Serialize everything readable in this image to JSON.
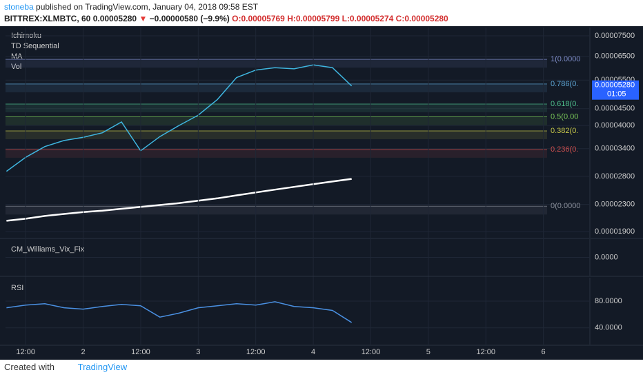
{
  "header": {
    "author": "stoneba",
    "published": "published on TradingView.com, January 04, 2018 09:58 EST",
    "symbol": "BITTREX:XLMBTC, 60",
    "last": "0.00005280",
    "arrow": "▼",
    "change": "−0.00000580 (−9.9%)",
    "open": "O:0.00005769",
    "high": "H:0.00005799",
    "low": "L:0.00005274",
    "close": "C:0.00005280"
  },
  "footer": {
    "created": "Created with",
    "brand": "TradingView"
  },
  "chart_data": [
    {
      "type": "line",
      "indicators": [
        "Ichimoku",
        "TD Sequential",
        "MA",
        "Vol"
      ],
      "log_scale": true,
      "x": [
        -4,
        0,
        4,
        8,
        12,
        16,
        20,
        24,
        28,
        32,
        36,
        40,
        44,
        48,
        52,
        56,
        60,
        64,
        68
      ],
      "series": [
        {
          "color": "#3fb6e0",
          "values": [
            2.9e-05,
            3.2e-05,
            3.45e-05,
            3.6e-05,
            3.68e-05,
            3.8e-05,
            4.1e-05,
            3.35e-05,
            3.7e-05,
            4e-05,
            4.3e-05,
            4.8e-05,
            5.6e-05,
            5.9e-05,
            6e-05,
            5.95e-05,
            6.12e-05,
            6e-05,
            5.28e-05
          ]
        },
        {
          "color": "#ffffff",
          "values": [
            2.05e-05,
            2.08e-05,
            2.12e-05,
            2.15e-05,
            2.18e-05,
            2.2e-05,
            2.23e-05,
            2.26e-05,
            2.29e-05,
            2.32e-05,
            2.36e-05,
            2.4e-05,
            2.45e-05,
            2.5e-05,
            2.55e-05,
            2.6e-05,
            2.65e-05,
            2.7e-05,
            2.75e-05
          ]
        }
      ],
      "xlim": [
        -4.2,
        117.7
      ],
      "xticks": [
        {
          "value": 0,
          "label": "12:00"
        },
        {
          "value": 12,
          "label": "2"
        },
        {
          "value": 24,
          "label": "12:00"
        },
        {
          "value": 36,
          "label": "3"
        },
        {
          "value": 48,
          "label": "12:00"
        },
        {
          "value": 60,
          "label": "4"
        },
        {
          "value": 72,
          "label": "12:00"
        },
        {
          "value": 84,
          "label": "5"
        },
        {
          "value": 96,
          "label": "12:00"
        },
        {
          "value": 108,
          "label": "6"
        }
      ],
      "ylim": [
        1.82e-05,
        7.95e-05
      ],
      "yticks": [
        {
          "value": 7.5e-05,
          "label": "0.00007500"
        },
        {
          "value": 6.5e-05,
          "label": "0.00006500"
        },
        {
          "value": 5.5e-05,
          "label": "0.00005500"
        },
        {
          "value": 4.5e-05,
          "label": "0.00004500"
        },
        {
          "value": 4e-05,
          "label": "0.00004000"
        },
        {
          "value": 3.4e-05,
          "label": "0.00003400"
        },
        {
          "value": 2.8e-05,
          "label": "0.00002800"
        },
        {
          "value": 2.3e-05,
          "label": "0.00002300"
        },
        {
          "value": 1.9e-05,
          "label": "0.00001900"
        }
      ],
      "annotations": [
        {
          "text": "1(0.0000",
          "value": 6.36e-05,
          "color": "#7e8cc8"
        },
        {
          "text": "0.786(0.",
          "value": 5.35e-05,
          "color": "#5fa8d8"
        },
        {
          "text": "0.618(0.",
          "value": 4.65e-05,
          "color": "#4fc08d"
        },
        {
          "text": "0.5(0.00",
          "value": 4.25e-05,
          "color": "#7ccc5a"
        },
        {
          "text": "0.382(0.",
          "value": 3.85e-05,
          "color": "#c8c84a"
        },
        {
          "text": "0.236(0.",
          "value": 3.38e-05,
          "color": "#d05050"
        },
        {
          "text": "0(0.0000",
          "value": 2.27e-05,
          "color": "#8a8f9a"
        }
      ],
      "last_price": {
        "value": 5.28e-05,
        "label": "0.00005280",
        "countdown": "01:05"
      }
    },
    {
      "type": "bar",
      "title": "CM_Williams_Vix_Fix",
      "ylim": [
        -1,
        1
      ],
      "yticks": [
        {
          "value": 0,
          "label": "0.0000"
        }
      ]
    },
    {
      "type": "line",
      "title": "RSI",
      "x": [
        -4,
        0,
        4,
        8,
        12,
        16,
        20,
        24,
        28,
        32,
        36,
        40,
        44,
        48,
        52,
        56,
        60,
        64,
        68
      ],
      "series": [
        {
          "color": "#4a90e2",
          "values": [
            70,
            74,
            76,
            70,
            68,
            72,
            75,
            73,
            56,
            62,
            70,
            73,
            76,
            74,
            79,
            72,
            70,
            66,
            48
          ]
        }
      ],
      "xlim": [
        -4.2,
        117.7
      ],
      "ylim": [
        15,
        115
      ],
      "yticks": [
        {
          "value": 80,
          "label": "80.0000"
        },
        {
          "value": 40,
          "label": "40.0000"
        }
      ]
    }
  ]
}
